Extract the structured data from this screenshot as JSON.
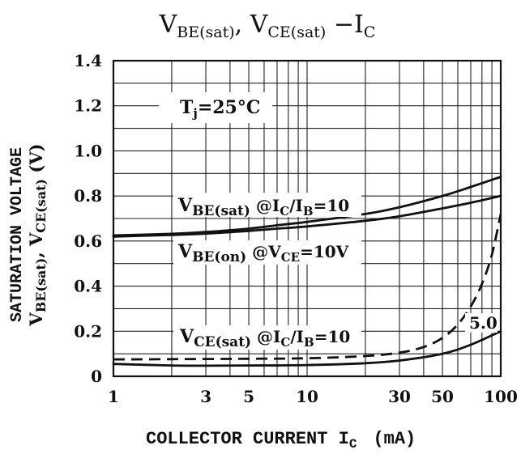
{
  "chart_data": {
    "type": "line",
    "title": {
      "parts": [
        "V",
        "BE(sat)",
        ", V",
        "CE(sat)",
        "  −I",
        "C"
      ]
    },
    "xlabel": {
      "main": "COLLECTOR CURRENT I",
      "sub": "C",
      "unit": "(mA)"
    },
    "ylabel": {
      "line1": "SATURATION VOLTAGE",
      "line2_parts": [
        "V",
        "BE(sat)",
        ", V",
        "CE(sat)",
        " (V)"
      ]
    },
    "x_scale": "log",
    "xlim": [
      1,
      100
    ],
    "ylim": [
      0,
      1.4
    ],
    "x_tick_labels": [
      "1",
      "3",
      "5",
      "10",
      "30",
      "50",
      "100"
    ],
    "x_ticks": [
      1,
      3,
      5,
      10,
      30,
      50,
      100
    ],
    "y_tick_labels": [
      "0",
      "0.2",
      "0.4",
      "0.6",
      "0.8",
      "1.0",
      "1.2",
      "1.4"
    ],
    "y_ticks": [
      0,
      0.2,
      0.4,
      0.6,
      0.8,
      1.0,
      1.2,
      1.4
    ],
    "grid": true,
    "annotations": {
      "tj": "T",
      "tj_sub": "j",
      "tj_rest": "=25°C",
      "five": "5.0"
    },
    "series": [
      {
        "name": "VBE(sat) @IC/IB=10",
        "label_parts": [
          "V",
          "BE(sat)",
          "  @I",
          "C",
          "/I",
          "B",
          "=10"
        ],
        "style": "solid",
        "x": [
          1,
          2,
          3,
          5,
          7,
          10,
          20,
          30,
          50,
          70,
          100
        ],
        "y": [
          0.625,
          0.632,
          0.64,
          0.655,
          0.67,
          0.685,
          0.72,
          0.75,
          0.8,
          0.84,
          0.885
        ]
      },
      {
        "name": "VBE(on) @VCE=10V",
        "label_parts": [
          "V",
          "BE(on)",
          "  @V",
          "CE",
          "=10V"
        ],
        "style": "solid",
        "x": [
          1,
          2,
          3,
          5,
          7,
          10,
          20,
          30,
          50,
          70,
          100
        ],
        "y": [
          0.62,
          0.627,
          0.633,
          0.645,
          0.655,
          0.665,
          0.69,
          0.71,
          0.745,
          0.77,
          0.8
        ]
      },
      {
        "name": "VCE(sat) @IC/IB=10",
        "label_parts": [
          "V",
          "CE(sat)",
          "  @I",
          "C",
          "/I",
          "B",
          "=10"
        ],
        "style": "solid",
        "x": [
          1,
          2,
          3,
          5,
          10,
          20,
          30,
          50,
          70,
          100
        ],
        "y": [
          0.055,
          0.048,
          0.047,
          0.048,
          0.05,
          0.058,
          0.07,
          0.1,
          0.14,
          0.2
        ]
      },
      {
        "name": "5.0",
        "style": "dashed",
        "x": [
          1,
          2,
          5,
          10,
          20,
          30,
          40,
          50,
          60,
          70,
          80,
          90,
          100
        ],
        "y": [
          0.075,
          0.076,
          0.078,
          0.08,
          0.09,
          0.105,
          0.13,
          0.17,
          0.23,
          0.31,
          0.41,
          0.54,
          0.72
        ]
      }
    ]
  }
}
